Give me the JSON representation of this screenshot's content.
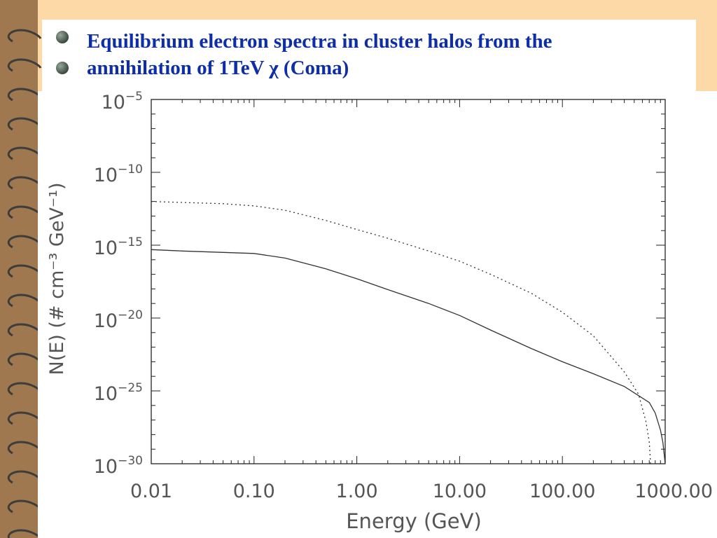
{
  "slide": {
    "title_line1": "Equilibrium electron spectra in cluster halos from the",
    "title_line2": "annihilation of 1TeV χ (Coma)"
  },
  "colors": {
    "background": "#fcd9a6",
    "title": "#0d2ea8",
    "binding": "#a0784f"
  },
  "chart_data": {
    "type": "line",
    "title": "",
    "xlabel": "Energy (GeV)",
    "ylabel": "N(E) (# cm⁻³ GeV⁻¹)",
    "xscale": "log",
    "yscale": "log",
    "xlim": [
      0.01,
      1000
    ],
    "ylim": [
      1e-30,
      1e-05
    ],
    "x_ticks": [
      "0.01",
      "0.10",
      "1.00",
      "10.00",
      "100.00",
      "1000.00"
    ],
    "y_ticks": [
      {
        "base": "10",
        "exp": "−5"
      },
      {
        "base": "10",
        "exp": "−10"
      },
      {
        "base": "10",
        "exp": "−15"
      },
      {
        "base": "10",
        "exp": "−20"
      },
      {
        "base": "10",
        "exp": "−25"
      },
      {
        "base": "10",
        "exp": "−30"
      }
    ],
    "series": [
      {
        "style": "solid",
        "x": [
          0.01,
          0.02,
          0.05,
          0.1,
          0.2,
          0.5,
          1,
          2,
          5,
          10,
          20,
          50,
          100,
          200,
          400,
          700,
          800,
          900,
          950,
          1000
        ],
        "y": [
          5e-16,
          4e-16,
          3.2e-16,
          2.7e-16,
          1.3e-16,
          2.4e-17,
          5e-18,
          9e-19,
          1e-19,
          1.5e-20,
          1.5e-21,
          8e-23,
          1e-23,
          1.5e-24,
          2e-25,
          1.6e-26,
          3e-27,
          2e-28,
          3e-29,
          1e-30
        ]
      },
      {
        "style": "dotted",
        "x": [
          0.01,
          0.05,
          0.1,
          0.2,
          0.5,
          1,
          2,
          5,
          10,
          20,
          50,
          100,
          200,
          400,
          550,
          650,
          700,
          720
        ],
        "y": [
          1e-12,
          7e-13,
          5e-13,
          2.5e-13,
          5e-14,
          1.2e-14,
          3e-15,
          4e-16,
          8e-17,
          1e-17,
          5e-19,
          2.5e-20,
          6e-22,
          2e-24,
          6e-26,
          8e-28,
          3e-29,
          1e-30
        ]
      }
    ]
  }
}
